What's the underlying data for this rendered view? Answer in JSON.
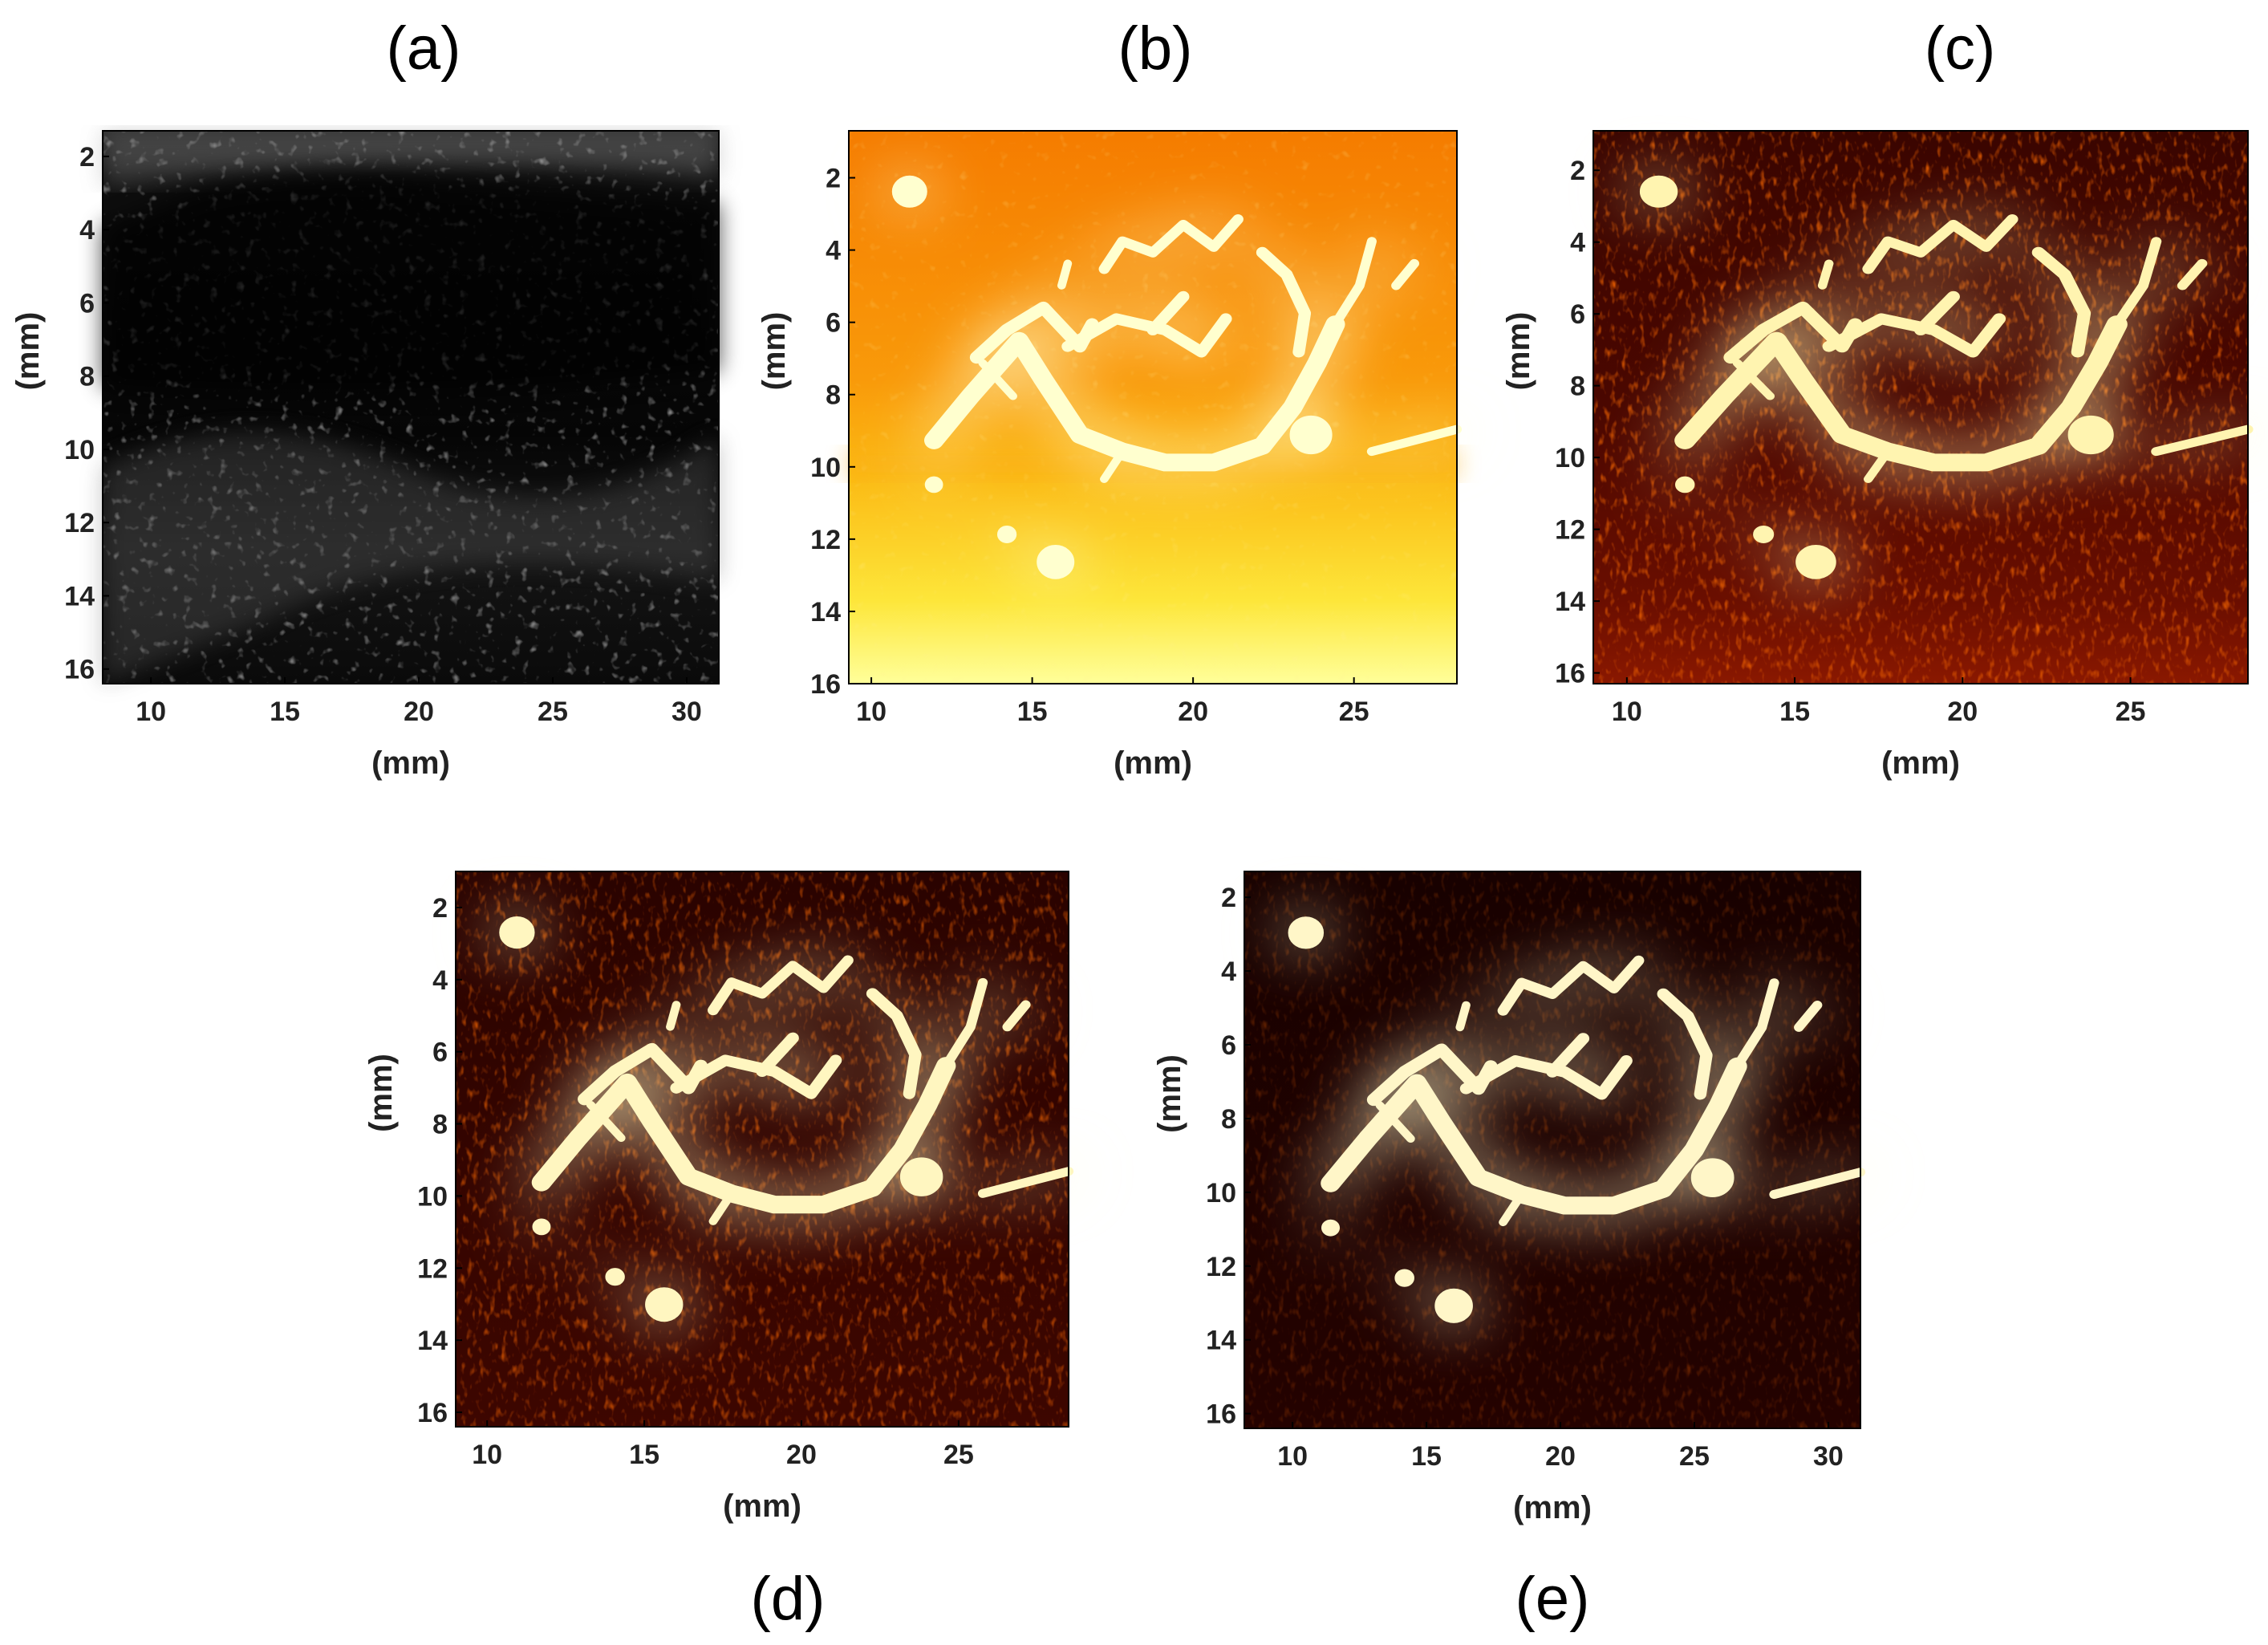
{
  "panels": [
    {
      "id": "a",
      "label": "(a)",
      "colormap": "gray",
      "xlabel": "(mm)",
      "ylabel": "(mm)",
      "xticks": [
        "10",
        "15",
        "20",
        "25",
        "30"
      ],
      "yticks": [
        "2",
        "4",
        "6",
        "8",
        "10",
        "12",
        "14",
        "16"
      ],
      "xlim": [
        8.2,
        31.2
      ],
      "ylim": [
        1.3,
        16.4
      ]
    },
    {
      "id": "b",
      "label": "(b)",
      "colormap": "orange-yellow",
      "xlabel": "(mm)",
      "ylabel": "(mm)",
      "xticks": [
        "10",
        "15",
        "20",
        "25"
      ],
      "yticks": [
        "2",
        "4",
        "6",
        "8",
        "10",
        "12",
        "14",
        "16"
      ],
      "xlim": [
        9.3,
        28.2
      ],
      "ylim": [
        0.7,
        16.0
      ]
    },
    {
      "id": "c",
      "label": "(c)",
      "colormap": "hot",
      "xlabel": "(mm)",
      "ylabel": "(mm)",
      "xticks": [
        "10",
        "15",
        "20",
        "25"
      ],
      "yticks": [
        "2",
        "4",
        "6",
        "8",
        "10",
        "12",
        "14",
        "16"
      ],
      "xlim": [
        9.0,
        28.5
      ],
      "ylim": [
        0.9,
        16.3
      ]
    },
    {
      "id": "d",
      "label": "(d)",
      "colormap": "hot",
      "xlabel": "(mm)",
      "ylabel": "(mm)",
      "xticks": [
        "10",
        "15",
        "20",
        "25"
      ],
      "yticks": [
        "2",
        "4",
        "6",
        "8",
        "10",
        "12",
        "14",
        "16"
      ],
      "xlim": [
        9.0,
        28.5
      ],
      "ylim": [
        1.0,
        16.4
      ]
    },
    {
      "id": "e",
      "label": "(e)",
      "colormap": "hot-dark",
      "xlabel": "(mm)",
      "ylabel": "(mm)",
      "xticks": [
        "10",
        "15",
        "20",
        "25",
        "30"
      ],
      "yticks": [
        "2",
        "4",
        "6",
        "8",
        "10",
        "12",
        "14",
        "16"
      ],
      "xlim": [
        8.2,
        31.2
      ],
      "ylim": [
        1.3,
        16.4
      ]
    }
  ]
}
